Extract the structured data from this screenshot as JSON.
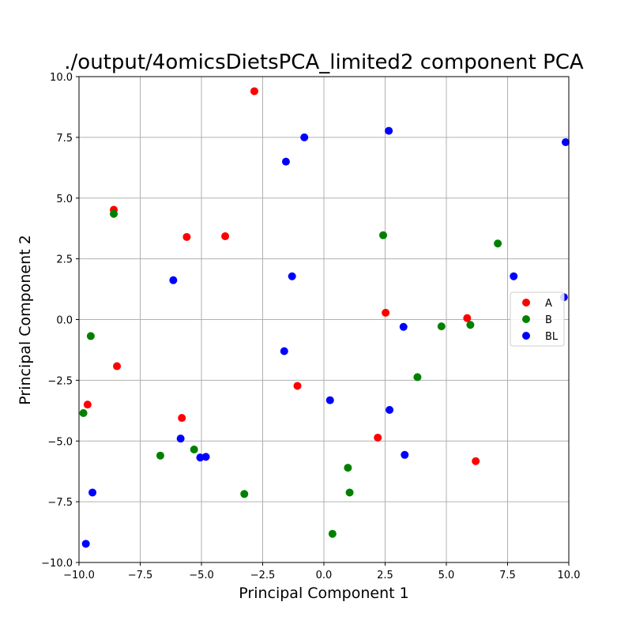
{
  "chart_data": {
    "type": "scatter",
    "title": "./output/4omicsDietsPCA_limited2 component PCA",
    "xlabel": "Principal Component 1",
    "ylabel": "Principal Component 2",
    "xlim": [
      -10,
      10
    ],
    "ylim": [
      -10,
      10
    ],
    "xticks": [
      "−10.0",
      "−7.5",
      "−5.0",
      "−2.5",
      "0.0",
      "2.5",
      "5.0",
      "7.5",
      "10.0"
    ],
    "yticks": [
      "−10.0",
      "−7.5",
      "−5.0",
      "−2.5",
      "0.0",
      "2.5",
      "5.0",
      "7.5",
      "10.0"
    ],
    "grid": true,
    "legend_position": "right",
    "series": [
      {
        "name": "A",
        "color": "#ff0000",
        "points": [
          [
            -2.84,
            9.4
          ],
          [
            -8.58,
            4.52
          ],
          [
            -5.6,
            3.4
          ],
          [
            -4.03,
            3.43
          ],
          [
            2.52,
            0.28
          ],
          [
            5.85,
            0.06
          ],
          [
            -8.45,
            -1.92
          ],
          [
            -9.65,
            -3.5
          ],
          [
            -1.08,
            -2.73
          ],
          [
            -5.8,
            -4.05
          ],
          [
            2.2,
            -4.86
          ],
          [
            6.2,
            -5.83
          ]
        ]
      },
      {
        "name": "B",
        "color": "#008000",
        "points": [
          [
            -8.58,
            4.35
          ],
          [
            2.42,
            3.47
          ],
          [
            7.1,
            3.13
          ],
          [
            -9.52,
            -0.68
          ],
          [
            4.8,
            -0.28
          ],
          [
            5.98,
            -0.22
          ],
          [
            3.82,
            -2.37
          ],
          [
            -9.82,
            -3.85
          ],
          [
            -6.68,
            -5.6
          ],
          [
            -5.3,
            -5.35
          ],
          [
            -3.25,
            -7.18
          ],
          [
            0.98,
            -6.1
          ],
          [
            1.05,
            -7.12
          ],
          [
            0.35,
            -8.82
          ]
        ]
      },
      {
        "name": "BL",
        "color": "#0000ff",
        "points": [
          [
            2.65,
            7.77
          ],
          [
            -0.8,
            7.5
          ],
          [
            -1.55,
            6.5
          ],
          [
            9.87,
            7.3
          ],
          [
            -6.15,
            1.62
          ],
          [
            -1.3,
            1.78
          ],
          [
            7.75,
            1.78
          ],
          [
            9.8,
            0.92
          ],
          [
            3.25,
            -0.3
          ],
          [
            -1.62,
            -1.3
          ],
          [
            0.25,
            -3.32
          ],
          [
            2.68,
            -3.72
          ],
          [
            -5.85,
            -4.9
          ],
          [
            -5.05,
            -5.68
          ],
          [
            -4.82,
            -5.65
          ],
          [
            3.3,
            -5.57
          ],
          [
            -9.45,
            -7.12
          ],
          [
            -9.72,
            -9.23
          ]
        ]
      }
    ]
  }
}
